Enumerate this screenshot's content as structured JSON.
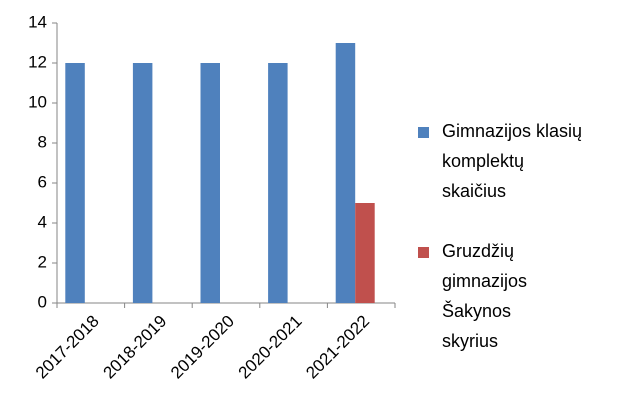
{
  "chart_data": {
    "type": "bar",
    "categories": [
      "2017-2018",
      "2018-2019",
      "2019-2020",
      "2020-2021",
      "2021-2022"
    ],
    "series": [
      {
        "name": "Gimnazijos klasių komplektų skaičius",
        "color": "#4f81bd",
        "values": [
          12,
          12,
          12,
          12,
          13
        ]
      },
      {
        "name": "Gruzdžių gimnazijos Šakynos skyrius",
        "color": "#c0504d",
        "values": [
          null,
          null,
          null,
          null,
          5
        ]
      }
    ],
    "ylim": [
      0,
      14
    ],
    "yticks": [
      0,
      2,
      4,
      6,
      8,
      10,
      12,
      14
    ],
    "grid": false,
    "legend": "right"
  }
}
